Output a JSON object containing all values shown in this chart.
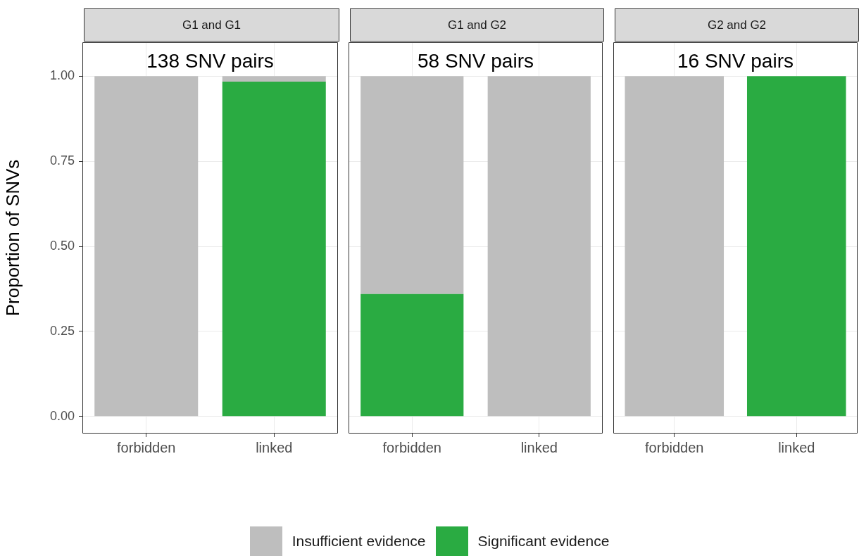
{
  "chart_data": [
    {
      "type": "bar",
      "title": "G1 and G1",
      "subtitle": "138 SNV pairs",
      "ylabel": "Proportion of SNVs",
      "categories": [
        "forbidden",
        "linked"
      ],
      "stacked": true,
      "ylim": [
        -0.05,
        1.1
      ],
      "yticks": [
        {
          "value": 0,
          "label": "0.00"
        },
        {
          "value": 0.25,
          "label": "0.25"
        },
        {
          "value": 0.5,
          "label": "0.50"
        },
        {
          "value": 0.75,
          "label": "0.75"
        },
        {
          "value": 1,
          "label": "1.00"
        }
      ],
      "grid": true,
      "legend": "bottom",
      "series": [
        {
          "name": "Significant evidence",
          "color": "#2aab42",
          "values": [
            0,
            0.984
          ]
        },
        {
          "name": "Insufficient evidence",
          "color": "#bebebe",
          "values": [
            1,
            0.016
          ]
        }
      ]
    },
    {
      "type": "bar",
      "title": "G1 and G2",
      "subtitle": "58 SNV pairs",
      "categories": [
        "forbidden",
        "linked"
      ],
      "stacked": true,
      "ylim": [
        -0.05,
        1.1
      ],
      "yticks": [
        {
          "value": 0,
          "label": null
        },
        {
          "value": 0.25,
          "label": null
        },
        {
          "value": 0.5,
          "label": null
        },
        {
          "value": 0.75,
          "label": null
        },
        {
          "value": 1,
          "label": null
        }
      ],
      "grid": true,
      "tick_labels": "x",
      "series": [
        {
          "color": "#2aab42",
          "values": [
            0.36,
            0
          ]
        },
        {
          "color": "#bebebe",
          "values": [
            0.64,
            1
          ]
        }
      ]
    },
    {
      "type": "bar",
      "title": "G2 and G2",
      "subtitle": "16 SNV pairs",
      "categories": [
        "forbidden",
        "linked"
      ],
      "stacked": true,
      "ylim": [
        -0.05,
        1.1
      ],
      "yticks": [
        {
          "value": 0,
          "label": null
        },
        {
          "value": 0.25,
          "label": null
        },
        {
          "value": 0.5,
          "label": null
        },
        {
          "value": 0.75,
          "label": null
        },
        {
          "value": 1,
          "label": null
        }
      ],
      "grid": true,
      "tick_labels": "x",
      "series": [
        {
          "color": "#2aab42",
          "values": [
            0,
            1
          ]
        },
        {
          "color": "#bebebe",
          "values": [
            1,
            0
          ]
        }
      ]
    }
  ]
}
